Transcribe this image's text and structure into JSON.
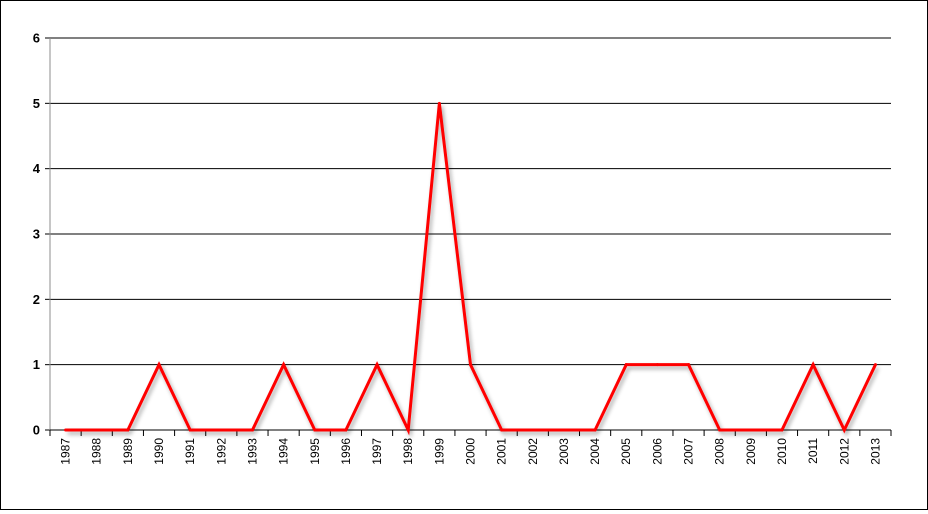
{
  "chart_data": {
    "type": "line",
    "title": "",
    "xlabel": "",
    "ylabel": "",
    "ylim": [
      0,
      6
    ],
    "yticks": [
      "0",
      "1",
      "2",
      "3",
      "4",
      "5",
      "6"
    ],
    "grid": true,
    "legend": "none",
    "categories": [
      "1987",
      "1988",
      "1989",
      "1990",
      "1991",
      "1992",
      "1993",
      "1994",
      "1995",
      "1996",
      "1997",
      "1998",
      "1999",
      "2000",
      "2001",
      "2002",
      "2003",
      "2004",
      "2005",
      "2006",
      "2007",
      "2008",
      "2009",
      "2010",
      "2011",
      "2012",
      "2013"
    ],
    "series": [
      {
        "color": "#ff0000",
        "values": [
          0,
          0,
          0,
          1,
          0,
          0,
          0,
          1,
          0,
          0,
          1,
          0,
          5,
          1,
          0,
          0,
          0,
          0,
          1,
          1,
          1,
          0,
          0,
          0,
          1,
          0,
          1
        ]
      }
    ]
  }
}
